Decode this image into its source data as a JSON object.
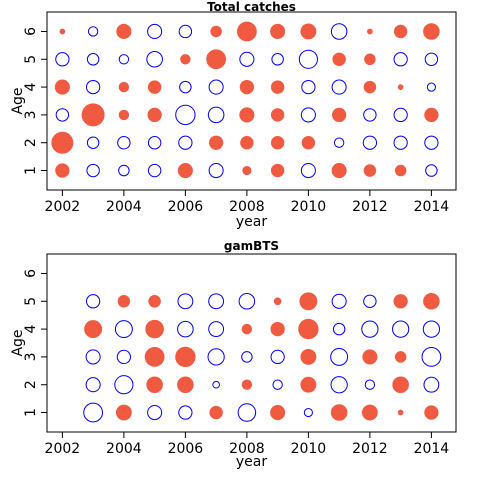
{
  "chart_data": [
    {
      "type": "scatter",
      "subtype": "bubble-residuals",
      "title": "Total catches",
      "xlabel": "year",
      "ylabel": "Age",
      "xlim": [
        2001.5,
        2014.8
      ],
      "ylim": [
        0.3,
        6.7
      ],
      "x_ticks": [
        2002,
        2004,
        2006,
        2008,
        2010,
        2012,
        2014
      ],
      "y_ticks": [
        1,
        2,
        3,
        4,
        5,
        6
      ],
      "years": [
        2002,
        2003,
        2004,
        2005,
        2006,
        2007,
        2008,
        2009,
        2010,
        2011,
        2012,
        2013,
        2014
      ],
      "ages": [
        1,
        2,
        3,
        4,
        5,
        6
      ],
      "legend": "none",
      "encoding": {
        "positive": "#f05a40",
        "negative": "#0000ff"
      },
      "residuals": [
        [
          0.8,
          2.0,
          -0.7,
          0.9,
          -0.8,
          0.1
        ],
        [
          -0.7,
          -0.6,
          2.2,
          -0.8,
          -0.6,
          -0.4
        ],
        [
          -0.5,
          -0.7,
          0.4,
          0.4,
          -0.4,
          0.9
        ],
        [
          -0.7,
          -0.7,
          0.8,
          0.7,
          -1.1,
          -0.9
        ],
        [
          0.9,
          -0.8,
          -1.7,
          -0.6,
          0.4,
          -0.7
        ],
        [
          -0.9,
          0.8,
          -1.1,
          -0.9,
          1.6,
          0.5
        ],
        [
          0.3,
          0.7,
          0.9,
          0.8,
          -0.9,
          1.6
        ],
        [
          0.7,
          0.7,
          0.7,
          0.7,
          -0.6,
          0.9
        ],
        [
          -0.9,
          0.7,
          -0.9,
          -0.8,
          -1.5,
          1.0
        ],
        [
          0.9,
          -0.4,
          0.8,
          -0.9,
          0.7,
          -1.1
        ],
        [
          0.6,
          -0.8,
          -0.7,
          0.6,
          0.5,
          0.1
        ],
        [
          0.5,
          -0.8,
          -0.8,
          0.1,
          -0.8,
          0.7
        ],
        [
          -0.6,
          -0.8,
          0.8,
          -0.3,
          -0.7,
          1.1
        ]
      ]
    },
    {
      "type": "scatter",
      "subtype": "bubble-residuals",
      "title": "gamBTS",
      "xlabel": "year",
      "ylabel": "Age",
      "xlim": [
        2001.5,
        2014.8
      ],
      "ylim": [
        0.3,
        6.7
      ],
      "x_ticks": [
        2002,
        2004,
        2006,
        2008,
        2010,
        2012,
        2014
      ],
      "y_ticks": [
        1,
        2,
        3,
        4,
        5,
        6
      ],
      "years": [
        2002,
        2003,
        2004,
        2005,
        2006,
        2007,
        2008,
        2009,
        2010,
        2011,
        2012,
        2013,
        2014
      ],
      "ages": [
        1,
        2,
        3,
        4,
        5
      ],
      "legend": "none",
      "encoding": {
        "positive": "#f05a40",
        "negative": "#0000ff"
      },
      "residuals": [
        [
          null,
          null,
          null,
          null,
          null
        ],
        [
          -1.6,
          -0.9,
          -0.9,
          1.3,
          -0.8
        ],
        [
          1.0,
          -1.5,
          -0.8,
          -1.3,
          0.6
        ],
        [
          -0.9,
          1.1,
          1.6,
          1.4,
          0.6
        ],
        [
          -0.8,
          1.1,
          1.7,
          -1.1,
          -1.0
        ],
        [
          0.7,
          -0.2,
          -1.2,
          -1.0,
          -1.0
        ],
        [
          -1.4,
          0.4,
          -0.5,
          0.4,
          -1.1
        ],
        [
          0.9,
          -0.4,
          -0.8,
          0.8,
          0.2
        ],
        [
          -0.3,
          1.0,
          1.0,
          1.7,
          1.3
        ],
        [
          1.1,
          -1.2,
          -1.3,
          -0.6,
          -0.9
        ],
        [
          1.0,
          -0.4,
          0.9,
          -1.2,
          -0.7
        ],
        [
          0.1,
          1.1,
          0.5,
          -1.2,
          0.8
        ],
        [
          0.8,
          -1.0,
          -1.6,
          -1.2,
          1.1
        ]
      ]
    }
  ]
}
